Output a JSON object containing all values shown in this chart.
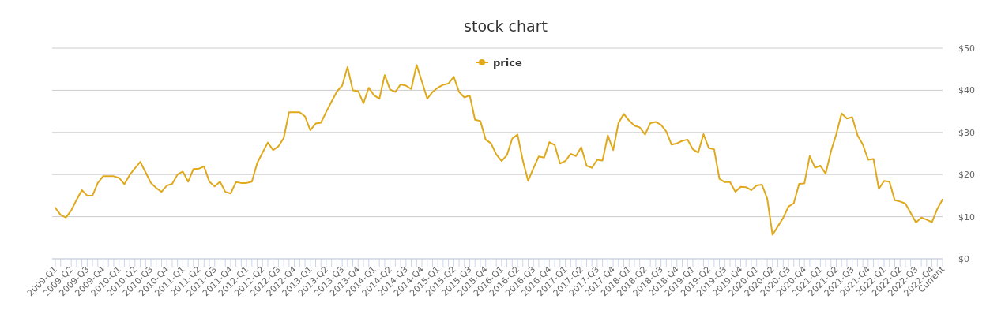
{
  "chart_data": {
    "type": "line",
    "title": "stock chart",
    "categories": [
      "2009-Q1",
      null,
      null,
      "2009-Q2",
      null,
      null,
      "2009-Q3",
      null,
      null,
      "2009-Q4",
      null,
      null,
      "2010-Q1",
      null,
      null,
      "2010-Q2",
      null,
      null,
      "2010-Q3",
      null,
      null,
      "2010-Q4",
      null,
      null,
      "2011-Q1",
      null,
      null,
      "2011-Q2",
      null,
      null,
      "2011-Q3",
      null,
      null,
      "2011-Q4",
      null,
      null,
      "2012-Q1",
      null,
      null,
      "2012-Q2",
      null,
      null,
      "2012-Q3",
      null,
      null,
      "2012-Q4",
      null,
      null,
      "2013-Q1",
      null,
      null,
      "2013-Q2",
      null,
      null,
      "2013-Q3",
      null,
      null,
      "2013-Q4",
      null,
      null,
      "2014-Q1",
      null,
      null,
      "2014-Q2",
      null,
      null,
      "2014-Q3",
      null,
      null,
      "2014-Q4",
      null,
      null,
      "2015-Q1",
      null,
      null,
      "2015-Q2",
      null,
      null,
      "2015-Q3",
      null,
      null,
      "2015-Q4",
      null,
      null,
      "2016-Q1",
      null,
      null,
      "2016-Q2",
      null,
      null,
      "2016-Q3",
      null,
      null,
      "2016-Q4",
      null,
      null,
      "2017-Q1",
      null,
      null,
      "2017-Q2",
      null,
      null,
      "2017-Q3",
      null,
      null,
      "2017-Q4",
      null,
      null,
      "2018-Q1",
      null,
      null,
      "2018-Q2",
      null,
      null,
      "2018-Q3",
      null,
      null,
      "2018-Q4",
      null,
      null,
      "2019-Q1",
      null,
      null,
      "2019-Q2",
      null,
      null,
      "2019-Q3",
      null,
      null,
      "2019-Q4",
      null,
      null,
      "2020-Q1",
      null,
      null,
      "2020-Q2",
      null,
      null,
      "2020-Q3",
      null,
      null,
      "2020-Q4",
      null,
      null,
      "2021-Q1",
      null,
      null,
      "2021-Q2",
      null,
      null,
      "2021-Q3",
      null,
      null,
      "2021-Q4",
      null,
      null,
      "2022-Q1",
      null,
      null,
      "2022-Q2",
      null,
      null,
      "2022-Q3",
      null,
      null,
      "2022-Q4",
      null,
      "Current"
    ],
    "series": [
      {
        "name": "price",
        "color": "#e0a91c",
        "values": [
          12.1,
          10.4,
          9.8,
          11.5,
          14.0,
          16.3,
          15.0,
          15.0,
          18.0,
          19.6,
          19.6,
          19.6,
          19.2,
          17.7,
          19.9,
          21.5,
          23.0,
          20.5,
          18.0,
          16.8,
          15.9,
          17.4,
          17.8,
          20.0,
          20.7,
          18.3,
          21.3,
          21.4,
          21.9,
          18.3,
          17.2,
          18.3,
          15.9,
          15.5,
          18.2,
          18.0,
          18.0,
          18.3,
          22.7,
          25.2,
          27.6,
          25.8,
          26.7,
          28.7,
          34.8,
          34.8,
          34.8,
          33.8,
          30.5,
          32.1,
          32.3,
          34.9,
          37.3,
          39.7,
          41.1,
          45.5,
          40.0,
          39.8,
          36.9,
          40.6,
          38.8,
          38.0,
          43.6,
          40.2,
          39.6,
          41.4,
          41.1,
          40.3,
          46.0,
          42.1,
          38.0,
          39.6,
          40.6,
          41.3,
          41.6,
          43.2,
          39.6,
          38.3,
          38.8,
          33.0,
          32.7,
          28.3,
          27.4,
          24.8,
          23.2,
          24.6,
          28.5,
          29.5,
          23.3,
          18.5,
          21.5,
          24.3,
          24.0,
          27.7,
          27.0,
          22.6,
          23.2,
          24.9,
          24.4,
          26.5,
          22.1,
          21.6,
          23.5,
          23.3,
          29.3,
          25.8,
          32.2,
          34.4,
          32.8,
          31.6,
          31.2,
          29.5,
          32.2,
          32.5,
          31.8,
          30.2,
          27.1,
          27.4,
          28.0,
          28.3,
          26.0,
          25.2,
          29.6,
          26.3,
          26.0,
          19.0,
          18.2,
          18.2,
          15.9,
          17.1,
          17.0,
          16.3,
          17.4,
          17.6,
          14.3,
          5.7,
          7.7,
          9.7,
          12.4,
          13.2,
          17.8,
          17.9,
          24.4,
          21.6,
          22.1,
          20.2,
          25.5,
          29.6,
          34.5,
          33.3,
          33.6,
          29.3,
          27.1,
          23.5,
          23.7,
          16.6,
          18.5,
          18.3,
          13.9,
          13.6,
          13.1,
          10.9,
          8.6,
          9.8,
          9.3,
          8.7,
          11.8,
          14.1
        ]
      }
    ],
    "ylim": [
      0,
      50
    ],
    "yticks": [
      {
        "value": 0,
        "label": "$0"
      },
      {
        "value": 10,
        "label": "$10"
      },
      {
        "value": 20,
        "label": "$20"
      },
      {
        "value": 30,
        "label": "$30"
      },
      {
        "value": 40,
        "label": "$40"
      },
      {
        "value": 50,
        "label": "$50"
      }
    ],
    "grid": "y",
    "legend": "top"
  }
}
